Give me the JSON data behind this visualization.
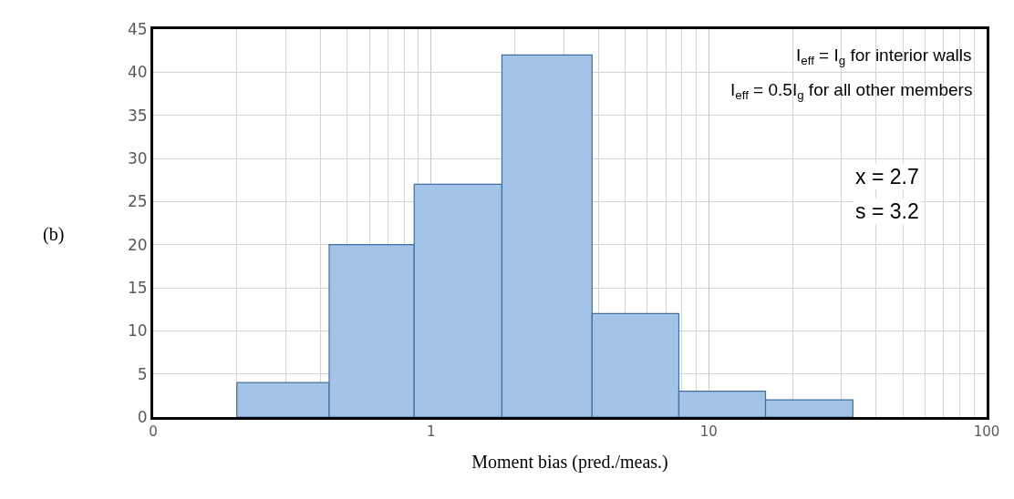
{
  "chart_data": {
    "type": "histogram",
    "bins": [
      0.2,
      0.43,
      0.87,
      1.8,
      3.8,
      7.8,
      16,
      33
    ],
    "values": [
      4,
      20,
      27,
      42,
      12,
      3,
      2
    ],
    "color": "#a3c4e6",
    "xlabel": "Moment bias (pred./meas.)",
    "log": "x",
    "xlim": [
      0.1,
      100
    ],
    "xticks": [
      {
        "value": 0.1,
        "label": "0"
      },
      1,
      10,
      100
    ],
    "ylim": [
      0,
      45
    ],
    "yticks": [
      0,
      5,
      10,
      15,
      20,
      25,
      30,
      35,
      40,
      45
    ],
    "grid": true,
    "annotations": [
      "I$_{eff}$ = I$_{g}$ for interior walls",
      "I$_{eff}$ = 0.5I$_{g}$ for all other members",
      "x = 2.7",
      "s = 3.2",
      "(b)"
    ]
  }
}
